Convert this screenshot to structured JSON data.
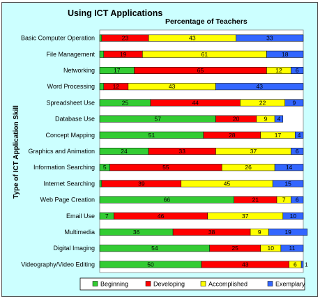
{
  "chart_data": {
    "type": "bar",
    "orientation": "horizontal",
    "stacked": true,
    "title": "Using ICT Applications",
    "subtitle": "Percentage of Teachers",
    "ylabel": "Type of ICT Application Skill",
    "xlim": [
      0,
      100
    ],
    "grid": false,
    "legend_position": "bottom",
    "categories": [
      "Basic Computer Operation",
      "File Management",
      "Networking",
      "Word Processing",
      "Spreadsheet Use",
      "Database Use",
      "Concept Mapping",
      "Graphics and Animation",
      "Information Searching",
      "Internet Searching",
      "Web Page Creation",
      "Email Use",
      "Multimedia",
      "Digital Imaging",
      "Videography/Video Editing"
    ],
    "series": [
      {
        "name": "Beginning",
        "color": "#33cc33",
        "values": [
          1,
          2,
          17,
          2,
          25,
          57,
          51,
          24,
          5,
          1,
          66,
          7,
          36,
          54,
          50
        ]
      },
      {
        "name": "Developing",
        "color": "#ff0000",
        "values": [
          23,
          19,
          65,
          12,
          44,
          20,
          28,
          33,
          55,
          39,
          21,
          46,
          38,
          25,
          43
        ]
      },
      {
        "name": "Accomplished",
        "color": "#ffff00",
        "values": [
          43,
          61,
          12,
          43,
          22,
          9,
          17,
          37,
          26,
          45,
          7,
          37,
          9,
          10,
          6
        ]
      },
      {
        "name": "Exemplary",
        "color": "#3366ff",
        "values": [
          33,
          18,
          6,
          43,
          9,
          4,
          4,
          6,
          14,
          15,
          6,
          10,
          19,
          11,
          1
        ]
      }
    ],
    "labels": [
      [
        "",
        "23",
        "43",
        "33"
      ],
      [
        "2",
        "19",
        "61",
        "18"
      ],
      [
        "17",
        "65",
        "12",
        "6"
      ],
      [
        "2",
        "12",
        "43",
        "43"
      ],
      [
        "25",
        "44",
        "22",
        "9"
      ],
      [
        "57",
        "20",
        "9",
        "4"
      ],
      [
        "51",
        "28",
        "17",
        "4"
      ],
      [
        "24",
        "33",
        "37",
        "6"
      ],
      [
        "5",
        "55",
        "26",
        "14"
      ],
      [
        "",
        "39",
        "45",
        "15"
      ],
      [
        "66",
        "21",
        "7",
        "6"
      ],
      [
        "7",
        "46",
        "37",
        "10"
      ],
      [
        "36",
        "38",
        "9",
        "19"
      ],
      [
        "54",
        "25",
        "10",
        "11"
      ],
      [
        "50",
        "43",
        "6",
        "1"
      ]
    ]
  }
}
